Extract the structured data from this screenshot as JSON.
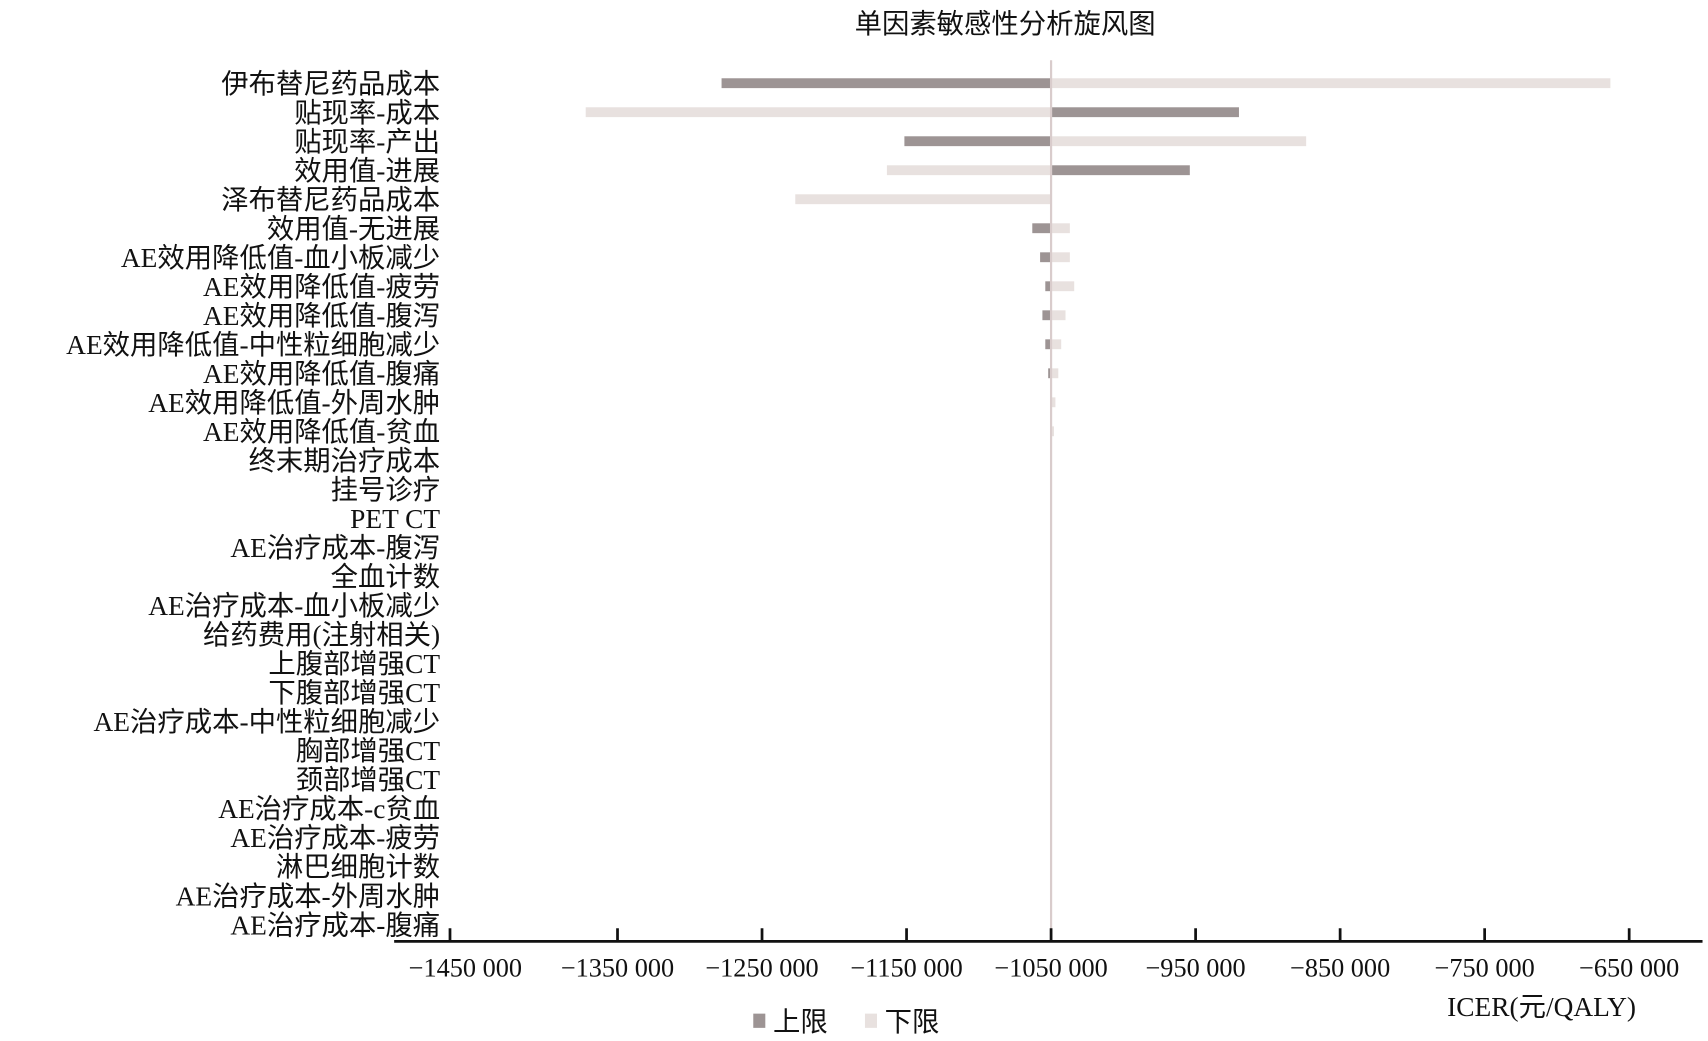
{
  "chart_data": {
    "type": "bar",
    "orientation": "horizontal-tornado",
    "title": "单因素敏感性分析旋风图",
    "xlabel": "ICER(元/QALY)",
    "ylabel": "",
    "base_value": -1050000,
    "xlim": [
      -1450000,
      -650000
    ],
    "xticks": [
      -1450000,
      -1350000,
      -1250000,
      -1150000,
      -1050000,
      -950000,
      -850000,
      -750000,
      -650000
    ],
    "xtick_labels": [
      "−1450 000",
      "−1350 000",
      "−1250 000",
      "−1150 000",
      "−1050 000",
      "−950 000",
      "−850 000",
      "−750 000",
      "−650 000"
    ],
    "grid": false,
    "legend_position": "bottom",
    "colors": {
      "上限": "#9d9494",
      "下限": "#e8e1df",
      "baseline": "#d9cccc"
    },
    "categories": [
      "伊布替尼药品成本",
      "贴现率-成本",
      "贴现率-产出",
      "效用值-进展",
      "泽布替尼药品成本",
      "效用值-无进展",
      "AE效用降低值-血小板减少",
      "AE效用降低值-疲劳",
      "AE效用降低值-腹泻",
      "AE效用降低值-中性粒细胞减少",
      "AE效用降低值-腹痛",
      "AE效用降低值-外周水肿",
      "AE效用降低值-贫血",
      "终末期治疗成本",
      "挂号诊疗",
      "PET CT",
      "AE治疗成本-腹泻",
      "全血计数",
      "AE治疗成本-血小板减少",
      "给药费用(注射相关)",
      "上腹部增强CT",
      "下腹部增强CT",
      "AE治疗成本-中性粒细胞减少",
      "胸部增强CT",
      "颈部增强CT",
      "AE治疗成本-c贫血",
      "AE治疗成本-疲劳",
      "淋巴细胞计数",
      "AE治疗成本-外周水肿",
      "AE治疗成本-腹痛"
    ],
    "series": [
      {
        "name": "上限",
        "values": [
          -1278000,
          -920000,
          -1151500,
          -954000,
          -1050000,
          -1063000,
          -1057600,
          -1054000,
          -1056000,
          -1054000,
          -1052000,
          -1050000,
          -1050000,
          -1050000,
          -1050000,
          -1050000,
          -1050000,
          -1050000,
          -1050000,
          -1050000,
          -1050000,
          -1050000,
          -1050000,
          -1050000,
          -1050000,
          -1050000,
          -1050000,
          -1050000,
          -1050000,
          -1050000
        ]
      },
      {
        "name": "下限",
        "values": [
          -663000,
          -1372000,
          -873500,
          -1163600,
          -1227000,
          -1037000,
          -1037000,
          -1034000,
          -1040000,
          -1043000,
          -1045000,
          -1047000,
          -1048000,
          -1050000,
          -1050000,
          -1050000,
          -1050000,
          -1050000,
          -1050000,
          -1050000,
          -1050000,
          -1050000,
          -1050000,
          -1050000,
          -1050000,
          -1050000,
          -1050000,
          -1050000,
          -1050000,
          -1050000
        ]
      }
    ]
  }
}
